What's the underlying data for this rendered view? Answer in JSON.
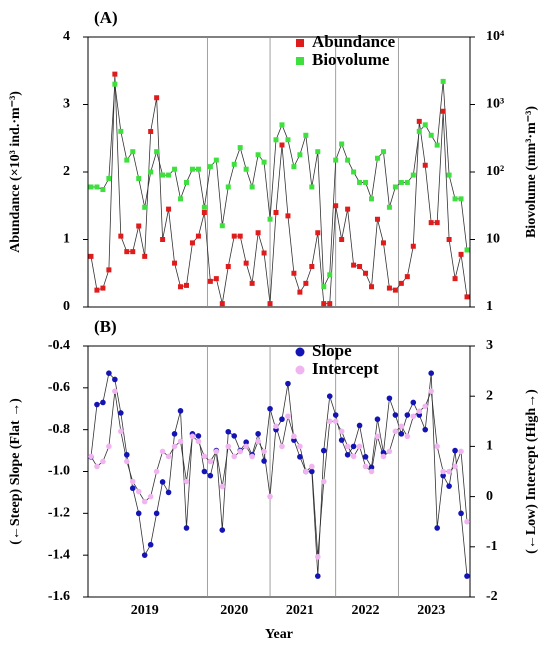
{
  "chart_data": [
    {
      "type": "line",
      "panel_label": "(A)",
      "ylabel": "Abundance (×10³ ind.·m⁻³)",
      "y2label": "Biovolume (mm³·m⁻³)",
      "ylim": [
        0,
        4
      ],
      "yticks": [
        0,
        1,
        2,
        3,
        4
      ],
      "y2lim": [
        1,
        10000
      ],
      "y2log": true,
      "y2ticks": [
        1,
        10,
        {
          "value": 100,
          "label": "10²"
        },
        {
          "value": 1000,
          "label": "10³"
        },
        {
          "value": 10000,
          "label": "10⁴"
        }
      ],
      "dividers": [
        19.5,
        30,
        41,
        51.5
      ],
      "marker": "square",
      "categories": [
        null,
        null,
        null,
        null,
        null,
        null,
        null,
        null,
        null,
        null,
        null,
        null,
        null,
        null,
        null,
        null,
        null,
        null,
        null,
        null,
        null,
        null,
        null,
        null,
        null,
        null,
        null,
        null,
        null,
        null,
        null,
        null,
        null,
        null,
        null,
        null,
        null,
        null,
        null,
        null,
        null,
        null,
        null,
        null,
        null,
        null,
        null,
        null,
        null,
        null,
        null,
        null,
        null,
        null,
        null,
        null,
        null,
        null,
        null,
        null,
        null,
        null,
        null,
        null
      ],
      "series": [
        {
          "name": "Abundance",
          "color": "#e01b1b",
          "values": [
            0.75,
            0.25,
            0.28,
            0.55,
            3.45,
            1.05,
            0.82,
            0.82,
            1.2,
            0.75,
            2.6,
            3.1,
            1.0,
            1.45,
            0.65,
            0.3,
            0.32,
            0.95,
            1.05,
            1.4,
            0.38,
            0.42,
            0.05,
            0.6,
            1.05,
            1.05,
            0.65,
            0.35,
            1.1,
            0.8,
            0.05,
            1.4,
            2.4,
            1.35,
            0.5,
            0.22,
            0.35,
            0.6,
            1.1,
            0.05,
            0.05,
            1.5,
            1.0,
            1.45,
            0.62,
            0.6,
            0.5,
            0.3,
            1.3,
            0.95,
            0.28,
            0.25,
            0.35,
            0.45,
            0.9,
            2.75,
            2.1,
            1.25,
            1.25,
            2.9,
            1.0,
            0.42,
            0.78,
            0.15
          ]
        },
        {
          "name": "Biovolume",
          "color": "#3ee03e",
          "axis": "y2",
          "values": [
            60,
            60,
            55,
            80,
            2000,
            400,
            150,
            200,
            80,
            30,
            100,
            200,
            90,
            90,
            110,
            40,
            70,
            110,
            110,
            30,
            120,
            150,
            16,
            60,
            130,
            230,
            110,
            60,
            180,
            140,
            20,
            300,
            500,
            300,
            120,
            180,
            350,
            60,
            200,
            2,
            3,
            150,
            260,
            150,
            100,
            70,
            70,
            40,
            160,
            200,
            30,
            60,
            70,
            70,
            90,
            400,
            500,
            350,
            250,
            2200,
            90,
            40,
            40,
            7
          ]
        }
      ]
    },
    {
      "type": "line",
      "panel_label": "(B)",
      "xlabel": "Year",
      "ylabel": "(←Steep)     Slope     (Flat →)",
      "y2label": "(←Low)   Intercept   (High→)",
      "ylim": [
        -1.6,
        -0.4
      ],
      "yticks": [
        -1.6,
        -1.4,
        -1.2,
        {
          "value": -1,
          "label": "-1.0"
        },
        -0.8,
        -0.6,
        -0.4
      ],
      "y2lim": [
        -2,
        3
      ],
      "y2ticks": [
        -2,
        -1,
        0,
        1,
        2,
        3
      ],
      "dividers": [
        19.5,
        30,
        41,
        51.5
      ],
      "marker": "circle",
      "categories": [
        null,
        null,
        null,
        null,
        null,
        null,
        null,
        null,
        null,
        "2019",
        null,
        null,
        null,
        null,
        null,
        null,
        null,
        null,
        null,
        null,
        null,
        null,
        null,
        null,
        "2020",
        null,
        null,
        null,
        null,
        null,
        null,
        null,
        null,
        null,
        null,
        "2021",
        null,
        null,
        null,
        null,
        null,
        null,
        null,
        null,
        null,
        null,
        "2022",
        null,
        null,
        null,
        null,
        null,
        null,
        null,
        null,
        null,
        null,
        "2023",
        null,
        null,
        null,
        null,
        null,
        null
      ],
      "series": [
        {
          "name": "Slope",
          "color": "#1414b4",
          "values": [
            -0.93,
            -0.68,
            -0.67,
            -0.53,
            -0.56,
            -0.72,
            -0.92,
            -1.08,
            -1.2,
            -1.4,
            -1.35,
            -1.2,
            -1.05,
            -1.1,
            -0.82,
            -0.71,
            -1.27,
            -0.82,
            -0.83,
            -1.0,
            -1.02,
            -0.9,
            -1.28,
            -0.81,
            -0.83,
            -0.9,
            -0.86,
            -0.92,
            -0.82,
            -0.95,
            -0.7,
            -0.8,
            -0.75,
            -0.58,
            -0.85,
            -0.93,
            -1.0,
            -1.0,
            -1.5,
            -0.9,
            -0.64,
            -0.73,
            -0.85,
            -0.92,
            -0.88,
            -0.78,
            -0.93,
            -0.98,
            -0.75,
            -0.91,
            -0.65,
            -0.73,
            -0.82,
            -0.73,
            -0.67,
            -0.73,
            -0.8,
            -0.53,
            -1.27,
            -1.02,
            -1.07,
            -0.9,
            -1.2,
            -1.5
          ]
        },
        {
          "name": "Intercept",
          "color": "#f0b4f0",
          "axis": "y2",
          "values": [
            0.8,
            0.6,
            0.7,
            1.0,
            2.1,
            1.3,
            0.7,
            0.3,
            0.1,
            -0.1,
            0.0,
            0.5,
            0.9,
            0.8,
            1.0,
            1.1,
            0.3,
            1.2,
            1.1,
            0.8,
            0.7,
            0.9,
            0.2,
            1.0,
            0.8,
            0.9,
            1.0,
            0.8,
            1.1,
            0.9,
            0.0,
            1.4,
            1.0,
            1.6,
            1.2,
            1.0,
            0.5,
            0.6,
            -1.2,
            0.3,
            1.5,
            1.5,
            1.3,
            1.0,
            0.8,
            1.0,
            0.6,
            0.5,
            1.2,
            0.8,
            0.9,
            1.3,
            1.4,
            1.2,
            1.6,
            1.7,
            1.8,
            2.1,
            1.0,
            0.5,
            0.5,
            0.6,
            0.9,
            -0.5
          ]
        }
      ]
    }
  ]
}
